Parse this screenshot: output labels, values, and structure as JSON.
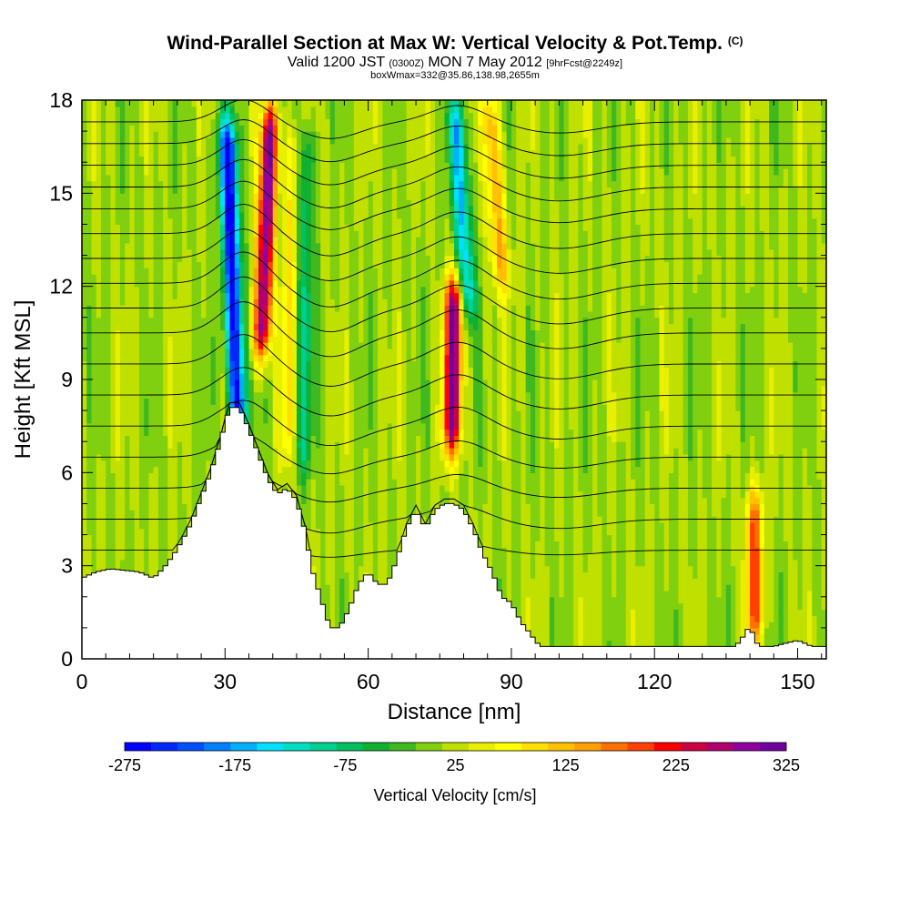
{
  "header": {
    "title": "Wind-Parallel Section at Max W: Vertical Velocity & Pot.Temp.",
    "copyright": "(C)",
    "valid_prefix": "Valid 1200 JST",
    "valid_utc": "(0300Z)",
    "valid_date": "MON 7 May 2012",
    "forecast": "[9hrFcst@2249z]",
    "box": "boxWmax=332@35.86,138.98,2655m"
  },
  "chart_data": {
    "type": "heatmap",
    "xlabel": "Distance [nm]",
    "ylabel": "Height [Kft MSL]",
    "xlim": [
      0,
      156
    ],
    "ylim": [
      0,
      18
    ],
    "x_ticks": [
      0,
      30,
      60,
      90,
      120,
      150
    ],
    "y_ticks": [
      0,
      3,
      6,
      9,
      12,
      15,
      18
    ],
    "grid": false,
    "colorbar": {
      "label": "Vertical Velocity [cm/s]",
      "placement": "bottom",
      "tick_labels": [
        -275,
        -175,
        -75,
        25,
        125,
        225,
        325
      ],
      "levels": [
        -275,
        -250,
        -225,
        -200,
        -175,
        -150,
        -125,
        -100,
        -75,
        -50,
        -25,
        0,
        25,
        50,
        75,
        100,
        125,
        150,
        175,
        200,
        225,
        250,
        275,
        300,
        325
      ],
      "colors": [
        "#0000ff",
        "#0028ff",
        "#0050ff",
        "#0080ff",
        "#00b0ff",
        "#00e0ff",
        "#00e0c0",
        "#00d090",
        "#00c060",
        "#10b030",
        "#40b820",
        "#80d010",
        "#c0e000",
        "#e8f000",
        "#ffff00",
        "#ffe000",
        "#ffc000",
        "#ffa000",
        "#ff7000",
        "#ff4000",
        "#ff0000",
        "#d00040",
        "#b00070",
        "#9000a0",
        "#7000a0"
      ]
    },
    "velocity_features": [
      {
        "kind": "downdraft",
        "x": 33.0,
        "y_bottom": 6.5,
        "y_top": 18.0,
        "peak_cm_s": -275,
        "lean_nm_per_kft": -0.25
      },
      {
        "kind": "updraft",
        "x": 37.5,
        "y_bottom": 9.5,
        "y_top": 18.0,
        "peak_cm_s": 325,
        "lean_nm_per_kft": 0.25
      },
      {
        "kind": "updraft",
        "x": 43.0,
        "y_bottom": 5.5,
        "y_top": 18.0,
        "peak_cm_s": 100,
        "lean_nm_per_kft": 0.1
      },
      {
        "kind": "downdraft",
        "x": 46.0,
        "y_bottom": 5.0,
        "y_top": 18.0,
        "peak_cm_s": -75,
        "lean_nm_per_kft": 0.1
      },
      {
        "kind": "updraft",
        "x": 77.5,
        "y_bottom": 7.0,
        "y_top": 12.0,
        "peak_cm_s": 325,
        "lean_nm_per_kft": 0.1
      },
      {
        "kind": "downdraft",
        "x": 81.0,
        "y_bottom": 11.0,
        "y_top": 18.0,
        "peak_cm_s": -150,
        "lean_nm_per_kft": -0.4
      },
      {
        "kind": "updraft",
        "x": 88.0,
        "y_bottom": 12.0,
        "y_top": 18.0,
        "peak_cm_s": 150,
        "lean_nm_per_kft": -0.4
      },
      {
        "kind": "updraft",
        "x": 141.0,
        "y_bottom": 1.0,
        "y_top": 5.0,
        "peak_cm_s": 200,
        "lean_nm_per_kft": 0.0
      }
    ],
    "terrain": {
      "x": [
        0,
        3,
        6,
        12,
        15,
        17,
        19,
        21,
        23,
        25,
        27,
        29,
        30,
        31,
        33,
        35,
        37,
        39,
        41,
        43,
        45,
        47,
        48,
        50,
        52,
        54,
        56,
        58,
        60,
        62,
        64,
        66,
        68,
        70,
        72,
        74,
        76,
        78,
        80,
        82,
        84,
        86,
        88,
        90,
        92,
        94,
        96,
        98,
        100,
        105,
        110,
        115,
        120,
        125,
        130,
        135,
        137,
        139,
        140,
        141,
        142,
        145,
        150,
        153,
        156
      ],
      "y": [
        2.6,
        2.8,
        2.9,
        2.8,
        2.6,
        2.9,
        3.3,
        3.8,
        4.4,
        5.2,
        6.0,
        7.0,
        7.6,
        8.1,
        8.1,
        7.4,
        6.6,
        5.8,
        5.3,
        5.5,
        5.1,
        4.0,
        3.0,
        2.0,
        1.0,
        1.0,
        1.6,
        2.4,
        2.8,
        2.4,
        2.4,
        3.2,
        4.2,
        4.8,
        4.2,
        4.8,
        5.0,
        5.0,
        4.8,
        4.2,
        3.4,
        2.8,
        2.0,
        1.8,
        1.2,
        0.8,
        0.4,
        0.4,
        0.4,
        0.4,
        0.4,
        0.4,
        0.4,
        0.4,
        0.4,
        0.4,
        0.4,
        0.8,
        1.1,
        0.6,
        0.4,
        0.4,
        0.6,
        0.4,
        0.4
      ]
    },
    "potential_temperature_contours": [
      {
        "base_y": 3.5,
        "amplitude": 0.5
      },
      {
        "base_y": 4.5,
        "amplitude": 1.0
      },
      {
        "base_y": 5.5,
        "amplitude": 1.0
      },
      {
        "base_y": 6.5,
        "amplitude": 1.2
      },
      {
        "base_y": 7.5,
        "amplitude": 1.4
      },
      {
        "base_y": 8.5,
        "amplitude": 1.5
      },
      {
        "base_y": 9.5,
        "amplitude": 1.6
      },
      {
        "base_y": 10.5,
        "amplitude": 1.7
      },
      {
        "base_y": 11.3,
        "amplitude": 1.7
      },
      {
        "base_y": 12.1,
        "amplitude": 1.7
      },
      {
        "base_y": 12.9,
        "amplitude": 1.6
      },
      {
        "base_y": 13.7,
        "amplitude": 1.6
      },
      {
        "base_y": 14.5,
        "amplitude": 1.5
      },
      {
        "base_y": 15.2,
        "amplitude": 1.5
      },
      {
        "base_y": 15.9,
        "amplitude": 1.4
      },
      {
        "base_y": 16.6,
        "amplitude": 1.3
      },
      {
        "base_y": 17.3,
        "amplitude": 1.2
      }
    ]
  }
}
